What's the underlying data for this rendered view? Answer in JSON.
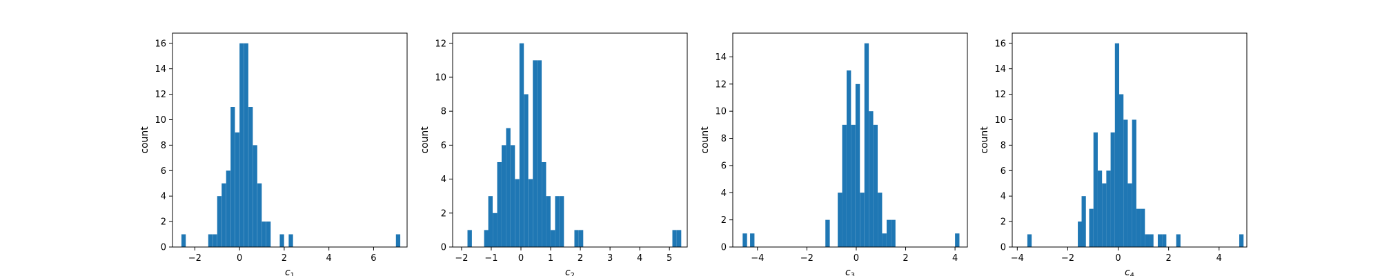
{
  "chart_data": [
    {
      "type": "bar",
      "xlabel": "c",
      "xlabel_sub": "1",
      "ylabel": "count",
      "xlim": [
        -3.0,
        7.5
      ],
      "ylim": [
        0,
        16.8
      ],
      "xticks": [
        -2,
        0,
        2,
        4,
        6
      ],
      "yticks": [
        0,
        2,
        4,
        6,
        8,
        10,
        12,
        14,
        16
      ],
      "bin_width": 0.194,
      "bins": [
        [
          -2.6,
          1
        ],
        [
          -1.4,
          1
        ],
        [
          -1.2,
          1
        ],
        [
          -1.0,
          4
        ],
        [
          -0.8,
          5
        ],
        [
          -0.6,
          6
        ],
        [
          -0.4,
          11
        ],
        [
          -0.2,
          9
        ],
        [
          0.0,
          16
        ],
        [
          0.2,
          16
        ],
        [
          0.4,
          11
        ],
        [
          0.6,
          8
        ],
        [
          0.8,
          5
        ],
        [
          1.0,
          2
        ],
        [
          1.2,
          2
        ],
        [
          1.8,
          1
        ],
        [
          2.2,
          1
        ],
        [
          7.0,
          1
        ]
      ]
    },
    {
      "type": "bar",
      "xlabel": "c",
      "xlabel_sub": "2",
      "ylabel": "count",
      "xlim": [
        -2.3,
        5.6
      ],
      "ylim": [
        0,
        12.6
      ],
      "xticks": [
        -2,
        -1,
        0,
        1,
        2,
        3,
        4,
        5
      ],
      "yticks": [
        0,
        2,
        4,
        6,
        8,
        10,
        12
      ],
      "bin_width": 0.148,
      "bins": [
        [
          -1.8,
          1
        ],
        [
          -1.24,
          1
        ],
        [
          -1.1,
          3
        ],
        [
          -0.95,
          2
        ],
        [
          -0.8,
          5
        ],
        [
          -0.65,
          6
        ],
        [
          -0.5,
          7
        ],
        [
          -0.35,
          6
        ],
        [
          -0.2,
          4
        ],
        [
          -0.05,
          12
        ],
        [
          0.1,
          9
        ],
        [
          0.25,
          4
        ],
        [
          0.4,
          11
        ],
        [
          0.55,
          11
        ],
        [
          0.7,
          5
        ],
        [
          0.85,
          3
        ],
        [
          1.0,
          1
        ],
        [
          1.15,
          3
        ],
        [
          1.3,
          3
        ],
        [
          1.8,
          1
        ],
        [
          1.95,
          1
        ],
        [
          5.1,
          1
        ],
        [
          5.25,
          1
        ]
      ]
    },
    {
      "type": "bar",
      "xlabel": "c",
      "xlabel_sub": "3",
      "ylabel": "count",
      "xlim": [
        -5.0,
        4.5
      ],
      "ylim": [
        0,
        15.75
      ],
      "xticks": [
        -4,
        -2,
        0,
        2,
        4
      ],
      "yticks": [
        0,
        2,
        4,
        6,
        8,
        10,
        12,
        14
      ],
      "bin_width": 0.178,
      "bins": [
        [
          -4.6,
          1
        ],
        [
          -4.3,
          1
        ],
        [
          -1.25,
          2
        ],
        [
          -0.75,
          4
        ],
        [
          -0.57,
          9
        ],
        [
          -0.39,
          13
        ],
        [
          -0.21,
          9
        ],
        [
          -0.03,
          12
        ],
        [
          0.15,
          4
        ],
        [
          0.33,
          15
        ],
        [
          0.51,
          10
        ],
        [
          0.69,
          9
        ],
        [
          0.87,
          4
        ],
        [
          1.05,
          1
        ],
        [
          1.23,
          2
        ],
        [
          1.41,
          2
        ],
        [
          4.0,
          1
        ]
      ]
    },
    {
      "type": "bar",
      "xlabel": "c",
      "xlabel_sub": "4",
      "ylabel": "count",
      "xlim": [
        -4.2,
        5.1
      ],
      "ylim": [
        0,
        16.8
      ],
      "xticks": [
        -4,
        -2,
        0,
        2,
        4
      ],
      "yticks": [
        0,
        2,
        4,
        6,
        8,
        10,
        12,
        14,
        16
      ],
      "bin_width": 0.17,
      "bins": [
        [
          -3.6,
          1
        ],
        [
          -1.6,
          2
        ],
        [
          -1.45,
          4
        ],
        [
          -1.15,
          3
        ],
        [
          -0.98,
          9
        ],
        [
          -0.81,
          6
        ],
        [
          -0.64,
          5
        ],
        [
          -0.47,
          6
        ],
        [
          -0.3,
          9
        ],
        [
          -0.13,
          16
        ],
        [
          0.04,
          12
        ],
        [
          0.21,
          10
        ],
        [
          0.38,
          5
        ],
        [
          0.55,
          10
        ],
        [
          0.72,
          3
        ],
        [
          0.89,
          3
        ],
        [
          1.06,
          1
        ],
        [
          1.23,
          1
        ],
        [
          1.57,
          1
        ],
        [
          1.74,
          1
        ],
        [
          2.3,
          1
        ],
        [
          4.8,
          1
        ]
      ]
    }
  ]
}
